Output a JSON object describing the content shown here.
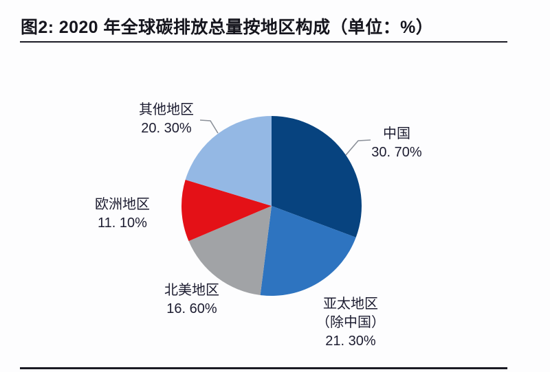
{
  "figure": {
    "title": "图2: 2020 年全球碳排放总量按地区构成（单位：%）"
  },
  "chart_data": {
    "type": "pie",
    "title": "2020 年全球碳排放总量按地区构成",
    "unit": "%",
    "start_angle_deg": 0,
    "direction": "clockwise",
    "legend": "none",
    "slices": [
      {
        "key": "china",
        "label_lines": [
          "中国"
        ],
        "pct_label": "30. 70%",
        "value": 30.7,
        "color": "#07437f"
      },
      {
        "key": "apac-ex-china",
        "label_lines": [
          "亚太地区",
          "（除中国）"
        ],
        "pct_label": "21. 30%",
        "value": 21.3,
        "color": "#2e74c0"
      },
      {
        "key": "north-america",
        "label_lines": [
          "北美地区"
        ],
        "pct_label": "16. 60%",
        "value": 16.6,
        "color": "#a1a3a6"
      },
      {
        "key": "europe",
        "label_lines": [
          "欧洲地区"
        ],
        "pct_label": "11. 10%",
        "value": 11.1,
        "color": "#e41117"
      },
      {
        "key": "others",
        "label_lines": [
          "其他地区"
        ],
        "pct_label": "20. 30%",
        "value": 20.3,
        "color": "#94b8e4"
      }
    ]
  }
}
